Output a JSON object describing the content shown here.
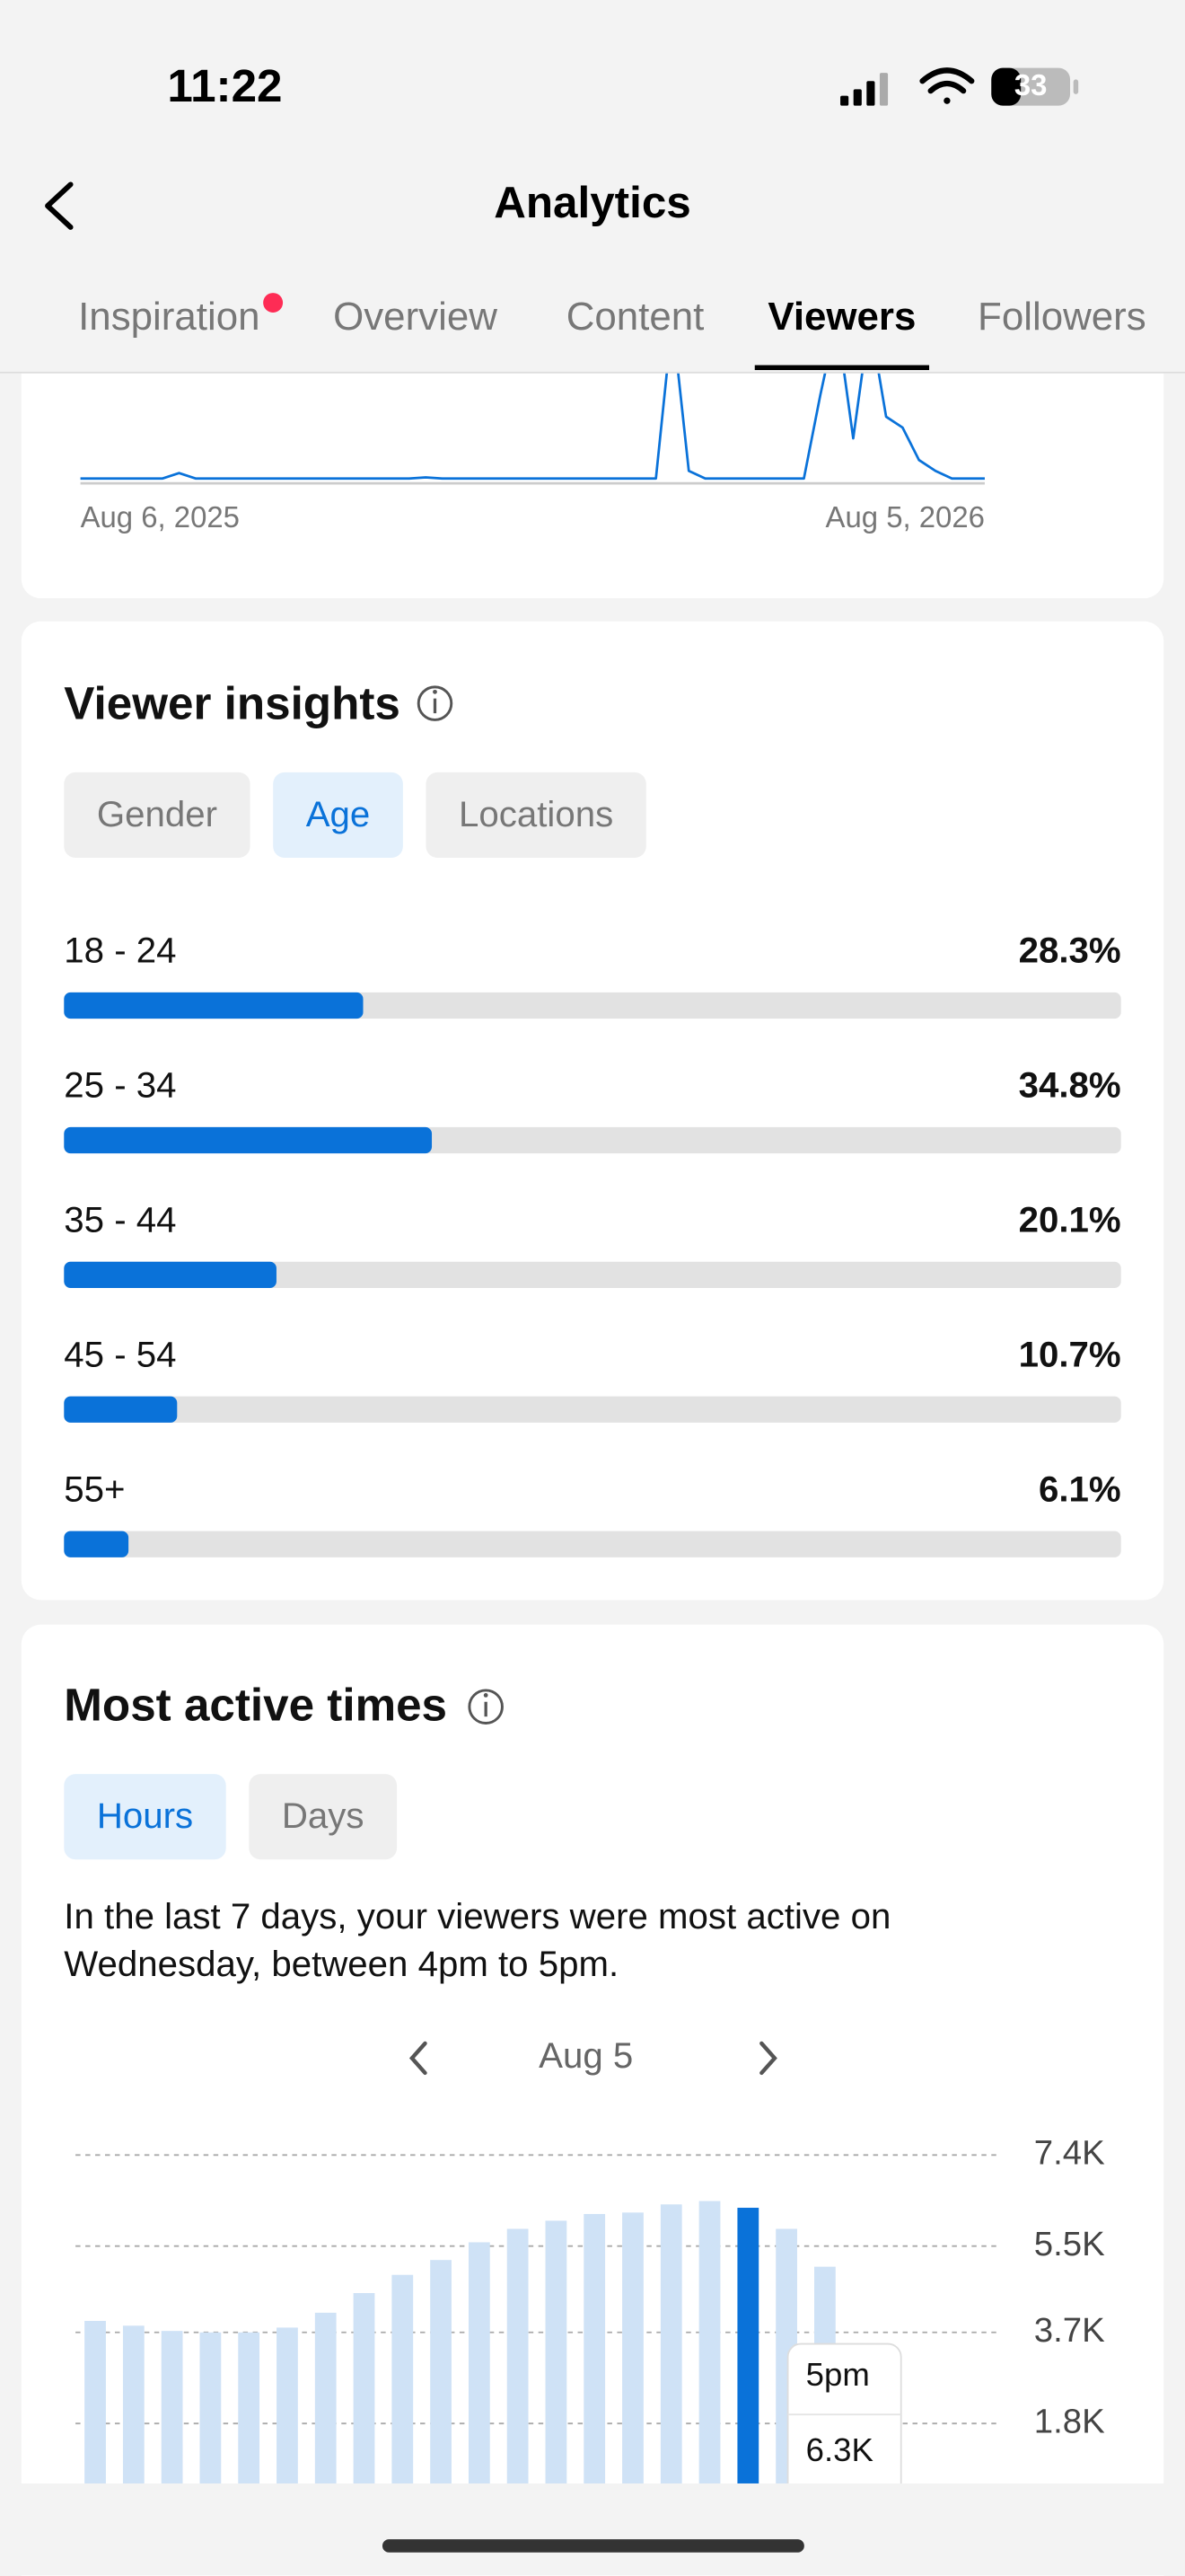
{
  "status_bar": {
    "time": "11:22",
    "battery": "33"
  },
  "header": {
    "title": "Analytics"
  },
  "tabs": [
    {
      "label": "Inspiration",
      "dot": true,
      "active": false
    },
    {
      "label": "Overview",
      "dot": false,
      "active": false
    },
    {
      "label": "Content",
      "dot": false,
      "active": false
    },
    {
      "label": "Viewers",
      "dot": false,
      "active": true
    },
    {
      "label": "Followers",
      "dot": false,
      "active": false
    }
  ],
  "viewer_insights": {
    "title": "Viewer insights",
    "filters": [
      {
        "label": "Gender",
        "active": false
      },
      {
        "label": "Age",
        "active": true
      },
      {
        "label": "Locations",
        "active": false
      }
    ]
  },
  "most_active_times": {
    "title": "Most active times",
    "filters": [
      {
        "label": "Hours",
        "active": true
      },
      {
        "label": "Days",
        "active": false
      }
    ],
    "description": "In the last 7 days, your viewers were most active on Wednesday, between 4pm to 5pm.",
    "date": "Aug 5"
  },
  "chart_data": [
    {
      "type": "line",
      "categories": [
        "Aug 6, 2025",
        null,
        null,
        null,
        null,
        null,
        null,
        null,
        null,
        null,
        null,
        null,
        null,
        null,
        null,
        null,
        null,
        null,
        null,
        null,
        null,
        null,
        null,
        null,
        null,
        null,
        null,
        null,
        null,
        null,
        null,
        null,
        null,
        null,
        null,
        null,
        null,
        null,
        null,
        null,
        null,
        null,
        null,
        null,
        null,
        null,
        null,
        null,
        null,
        null,
        null,
        null,
        null,
        null,
        null,
        "Aug 5, 2026"
      ],
      "values": [
        0.3,
        0.3,
        0.3,
        0.3,
        0.3,
        0.3,
        0.8,
        0.3,
        0.3,
        0.3,
        0.3,
        0.3,
        0.3,
        0.3,
        0.3,
        0.3,
        0.3,
        0.3,
        0.3,
        0.3,
        0.3,
        0.4,
        0.3,
        0.3,
        0.3,
        0.3,
        0.3,
        0.3,
        0.3,
        0.3,
        0.3,
        0.3,
        0.3,
        0.3,
        0.3,
        0.3,
        15,
        1,
        0.3,
        0.3,
        0.3,
        0.3,
        0.3,
        0.3,
        0.3,
        8,
        15,
        4,
        15,
        6,
        5,
        2,
        1,
        0.3,
        0.3,
        0.3
      ],
      "ylim": [
        0,
        10
      ],
      "color": "#0a72d9"
    },
    {
      "type": "bar",
      "orientation": "horizontal",
      "categories": [
        "18 - 24",
        "25 - 34",
        "35 - 44",
        "45 - 54",
        "55+"
      ],
      "values": [
        28.3,
        34.8,
        20.1,
        10.7,
        6.1
      ],
      "value_labels": [
        "28.3%",
        "34.8%",
        "20.1%",
        "10.7%",
        "6.1%"
      ],
      "xlim": [
        0,
        100
      ],
      "color": "#0a72d9",
      "track_color": "#e2e2e2"
    },
    {
      "type": "bar",
      "categories": [
        null,
        null,
        null,
        null,
        null,
        null,
        null,
        null,
        null,
        null,
        null,
        null,
        null,
        null,
        null,
        null,
        null,
        "5pm",
        null,
        null
      ],
      "values": [
        3940,
        3840,
        3730,
        3700,
        3700,
        3800,
        4110,
        4520,
        4900,
        5210,
        5580,
        5860,
        6030,
        6170,
        6200,
        6370,
        6440,
        6300,
        5860,
        5070
      ],
      "value_labels": [
        null,
        null,
        null,
        null,
        null,
        null,
        null,
        null,
        null,
        null,
        null,
        null,
        null,
        null,
        null,
        null,
        null,
        "6.3K",
        null,
        null
      ],
      "ylim": [
        0,
        7400
      ],
      "yticks": [
        {
          "value": 7400,
          "label": "7.4K"
        },
        {
          "value": 5500,
          "label": "5.5K"
        },
        {
          "value": 3700,
          "label": "3.7K"
        },
        {
          "value": 1800,
          "label": "1.8K"
        }
      ],
      "grid": true,
      "color": "#cfe2f6",
      "highlight_color": "#0a72d9"
    }
  ]
}
